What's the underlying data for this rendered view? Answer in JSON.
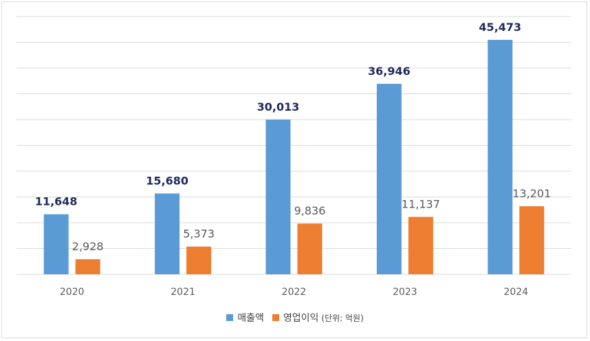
{
  "chart_data": {
    "type": "bar",
    "categories": [
      "2020",
      "2021",
      "2022",
      "2023",
      "2024"
    ],
    "series": [
      {
        "name": "매출액",
        "values": [
          11648,
          15680,
          30013,
          36946,
          45473
        ],
        "value_labels": [
          "11,648",
          "15,680",
          "30,013",
          "36,946",
          "45,473"
        ],
        "color": "#5b9bd5"
      },
      {
        "name": "영업이익",
        "values": [
          2928,
          5373,
          9836,
          11137,
          13201
        ],
        "value_labels": [
          "2,928",
          "5,373",
          "9,836",
          "11,137",
          "13,201"
        ],
        "color": "#ed7d31"
      }
    ],
    "ylim": [
      0,
      50000
    ],
    "grid": true,
    "legend_placement": "bottom",
    "unit_note": "(단위: 억원)",
    "gridline_color": "#d9d9d9"
  }
}
